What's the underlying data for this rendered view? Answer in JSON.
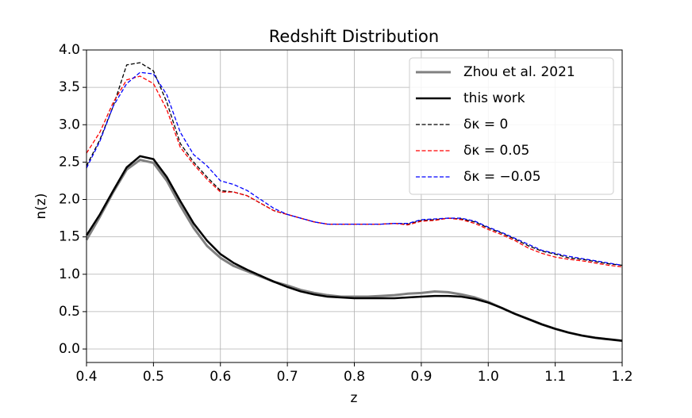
{
  "chart_data": {
    "type": "line",
    "title": "Redshift Distribution",
    "x_label": "z",
    "y_label": "n(z)",
    "x": [
      0.4,
      0.42,
      0.44,
      0.46,
      0.48,
      0.5,
      0.52,
      0.54,
      0.56,
      0.58,
      0.6,
      0.62,
      0.64,
      0.66,
      0.68,
      0.7,
      0.72,
      0.74,
      0.76,
      0.78,
      0.8,
      0.82,
      0.84,
      0.86,
      0.88,
      0.9,
      0.92,
      0.94,
      0.96,
      0.98,
      1.0,
      1.02,
      1.04,
      1.06,
      1.08,
      1.1,
      1.12,
      1.14,
      1.16,
      1.18,
      1.2
    ],
    "series": [
      {
        "name": "Zhou et al. 2021",
        "color": "#808080",
        "width": 3,
        "dashed": false,
        "values": [
          1.46,
          1.77,
          2.1,
          2.4,
          2.53,
          2.49,
          2.25,
          1.92,
          1.62,
          1.38,
          1.22,
          1.11,
          1.04,
          0.97,
          0.9,
          0.85,
          0.79,
          0.75,
          0.72,
          0.7,
          0.7,
          0.7,
          0.71,
          0.72,
          0.74,
          0.75,
          0.77,
          0.76,
          0.73,
          0.69,
          0.63,
          0.55,
          0.47,
          0.4,
          0.33,
          0.27,
          0.22,
          0.18,
          0.15,
          0.13,
          0.11
        ]
      },
      {
        "name": "this work",
        "color": "#000000",
        "width": 2.5,
        "dashed": false,
        "values": [
          1.52,
          1.8,
          2.12,
          2.43,
          2.58,
          2.54,
          2.3,
          1.98,
          1.68,
          1.45,
          1.27,
          1.15,
          1.06,
          0.98,
          0.9,
          0.83,
          0.77,
          0.73,
          0.7,
          0.69,
          0.68,
          0.68,
          0.68,
          0.68,
          0.69,
          0.7,
          0.71,
          0.71,
          0.7,
          0.67,
          0.62,
          0.55,
          0.47,
          0.4,
          0.33,
          0.27,
          0.22,
          0.18,
          0.15,
          0.13,
          0.11
        ]
      },
      {
        "name": "δκ = 0",
        "color": "#000000",
        "width": 1.3,
        "dashed": true,
        "values": [
          2.45,
          2.8,
          3.25,
          3.8,
          3.83,
          3.72,
          3.3,
          2.75,
          2.5,
          2.3,
          2.12,
          2.1,
          2.05,
          1.95,
          1.85,
          1.8,
          1.75,
          1.7,
          1.67,
          1.67,
          1.67,
          1.67,
          1.67,
          1.68,
          1.67,
          1.72,
          1.73,
          1.75,
          1.74,
          1.7,
          1.62,
          1.55,
          1.47,
          1.38,
          1.31,
          1.27,
          1.22,
          1.2,
          1.17,
          1.14,
          1.12
        ]
      },
      {
        "name": "δκ = 0.05",
        "color": "#ff0000",
        "width": 1.3,
        "dashed": true,
        "values": [
          2.62,
          2.9,
          3.3,
          3.6,
          3.65,
          3.55,
          3.2,
          2.7,
          2.47,
          2.27,
          2.1,
          2.1,
          2.05,
          1.95,
          1.85,
          1.8,
          1.75,
          1.7,
          1.67,
          1.67,
          1.67,
          1.67,
          1.67,
          1.68,
          1.66,
          1.71,
          1.72,
          1.75,
          1.73,
          1.68,
          1.6,
          1.53,
          1.45,
          1.35,
          1.28,
          1.23,
          1.2,
          1.18,
          1.15,
          1.12,
          1.1
        ]
      },
      {
        "name": "δκ = −0.05",
        "color": "#0000ff",
        "width": 1.3,
        "dashed": true,
        "values": [
          2.42,
          2.78,
          3.25,
          3.55,
          3.7,
          3.68,
          3.4,
          2.9,
          2.6,
          2.45,
          2.25,
          2.2,
          2.12,
          2.0,
          1.88,
          1.8,
          1.75,
          1.7,
          1.67,
          1.67,
          1.67,
          1.67,
          1.67,
          1.68,
          1.68,
          1.73,
          1.74,
          1.75,
          1.75,
          1.71,
          1.63,
          1.56,
          1.48,
          1.4,
          1.32,
          1.28,
          1.24,
          1.21,
          1.18,
          1.15,
          1.12
        ]
      }
    ],
    "xlim": [
      0.4,
      1.2
    ],
    "xticks": [
      0.4,
      0.5,
      0.6,
      0.7,
      0.8,
      0.9,
      {
        "value": 1.0,
        "label": "1.0"
      },
      1.1,
      1.2
    ],
    "ylim": [
      -0.18,
      4.0
    ],
    "yticks": [
      {
        "value": 0,
        "label": "0.0"
      },
      0.5,
      {
        "value": 1,
        "label": "1.0"
      },
      1.5,
      {
        "value": 2,
        "label": "2.0"
      },
      2.5,
      {
        "value": 3,
        "label": "3.0"
      },
      3.5,
      {
        "value": 4,
        "label": "4.0"
      }
    ],
    "grid": true,
    "legend": "upper right"
  }
}
